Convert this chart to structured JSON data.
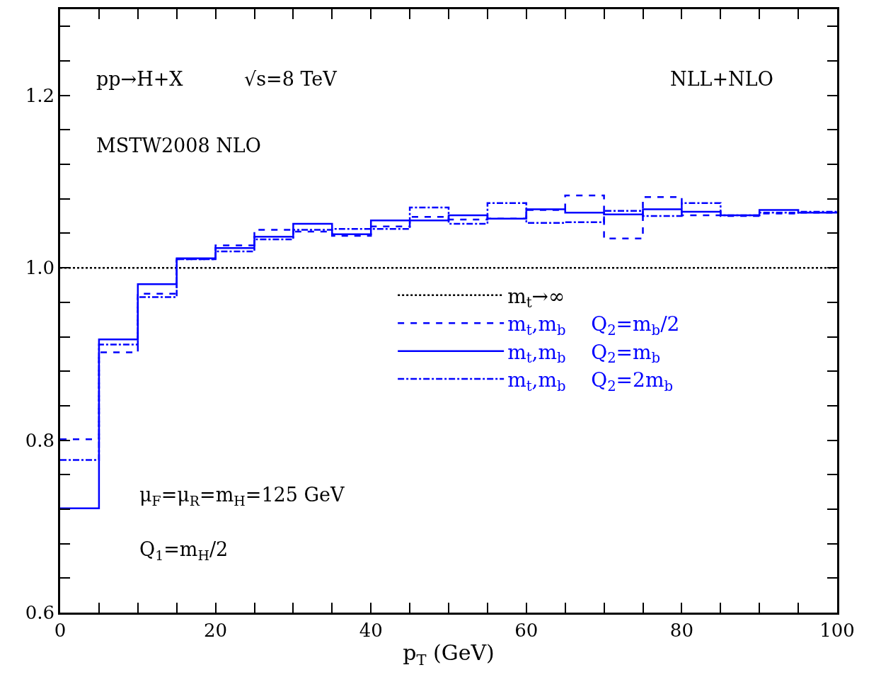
{
  "chart_data": {
    "type": "histogram",
    "xlabel": "p$_{T}$ (GeV)",
    "bins": [
      0,
      5,
      10,
      15,
      20,
      25,
      30,
      35,
      40,
      45,
      50,
      55,
      60,
      65,
      70,
      75,
      80,
      85,
      90,
      95,
      100
    ],
    "series": [
      {
        "name": "m$_{t}$→∞",
        "color": "#000000",
        "line_style": "dotted",
        "values": [
          1.0,
          1.0,
          1.0,
          1.0,
          1.0,
          1.0,
          1.0,
          1.0,
          1.0,
          1.0,
          1.0,
          1.0,
          1.0,
          1.0,
          1.0,
          1.0,
          1.0,
          1.0,
          1.0,
          1.0
        ]
      },
      {
        "name": "m$_{t}$,m$_{b}$    Q$_{2}$=m$_{b}$/2",
        "color": "#0000fc",
        "line_style": "dashed",
        "values": [
          0.801,
          0.902,
          0.97,
          1.01,
          1.026,
          1.044,
          1.042,
          1.037,
          1.048,
          1.059,
          1.056,
          1.057,
          1.067,
          1.084,
          1.034,
          1.082,
          1.061,
          1.06,
          1.063,
          1.064
        ]
      },
      {
        "name": "m$_{t}$,m$_{b}$    Q$_{2}$=m$_{b}$",
        "color": "#0000ff",
        "line_style": "solid",
        "values": [
          0.721,
          0.917,
          0.981,
          1.011,
          1.023,
          1.036,
          1.051,
          1.039,
          1.055,
          1.055,
          1.061,
          1.057,
          1.068,
          1.064,
          1.062,
          1.068,
          1.065,
          1.061,
          1.067,
          1.064
        ]
      },
      {
        "name": "m$_{t}$,m$_{b}$    Q$_{2}$=2m$_{b}$",
        "color": "#0303ff",
        "line_style": "dashdot",
        "values": [
          0.777,
          0.911,
          0.966,
          1.01,
          1.019,
          1.033,
          1.044,
          1.045,
          1.045,
          1.07,
          1.051,
          1.075,
          1.052,
          1.053,
          1.066,
          1.06,
          1.075,
          1.061,
          1.064,
          1.065
        ]
      }
    ],
    "xlim": [
      0,
      100
    ],
    "ylim": [
      0.6,
      1.3
    ],
    "xticks": [
      0,
      {
        "value": 5,
        "label": null
      },
      {
        "value": 10,
        "label": null
      },
      {
        "value": 15,
        "label": null
      },
      20,
      {
        "value": 25,
        "label": null
      },
      {
        "value": 30,
        "label": null
      },
      {
        "value": 35,
        "label": null
      },
      40,
      {
        "value": 45,
        "label": null
      },
      {
        "value": 50,
        "label": null
      },
      {
        "value": 55,
        "label": null
      },
      60,
      {
        "value": 65,
        "label": null
      },
      {
        "value": 70,
        "label": null
      },
      {
        "value": 75,
        "label": null
      },
      80,
      {
        "value": 85,
        "label": null
      },
      {
        "value": 90,
        "label": null
      },
      {
        "value": 95,
        "label": null
      },
      100
    ],
    "yticks": [
      {
        "value": 0.6,
        "label": "0.6"
      },
      {
        "value": 0.64,
        "label": null
      },
      {
        "value": 0.68,
        "label": null
      },
      {
        "value": 0.72,
        "label": null
      },
      {
        "value": 0.76,
        "label": null
      },
      {
        "value": 0.8,
        "label": "0.8"
      },
      {
        "value": 0.84,
        "label": null
      },
      {
        "value": 0.88,
        "label": null
      },
      {
        "value": 0.92,
        "label": null
      },
      {
        "value": 0.96,
        "label": null
      },
      {
        "value": 1.0,
        "label": "1.0"
      },
      {
        "value": 1.04,
        "label": null
      },
      {
        "value": 1.08,
        "label": null
      },
      {
        "value": 1.12,
        "label": null
      },
      {
        "value": 1.16,
        "label": null
      },
      {
        "value": 1.2,
        "label": "1.2"
      },
      {
        "value": 1.24,
        "label": null
      },
      {
        "value": 1.28,
        "label": null
      }
    ],
    "legend": "right",
    "marker": "none",
    "annotations": [
      "pp→H+X",
      "√s=8 TeV",
      "NLL+NLO",
      "MSTW2008 NLO",
      "μ$_{F}$=μ$_{R}$=m$_{H}$=125 GeV",
      "Q$_{1}$=m$_{H}$/2"
    ]
  }
}
